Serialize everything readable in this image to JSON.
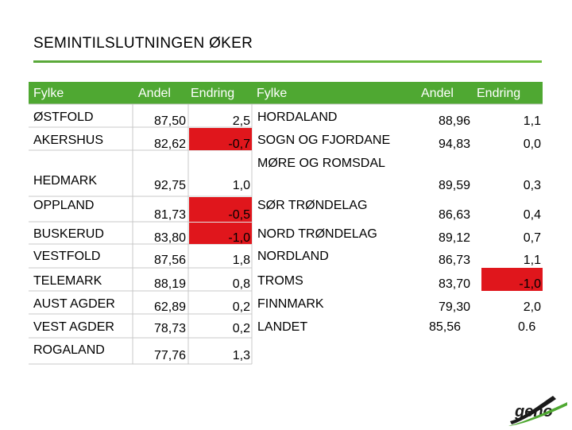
{
  "title": "SEMINTILSLUTNINGEN ØKER",
  "headers": {
    "left_fylke": "Fylke",
    "left_andel": "Andel",
    "left_endring": "Endring",
    "right_fylke": "Fylke",
    "right_andel": "Andel",
    "right_endring": "Endring"
  },
  "left_rows": [
    {
      "fylke": "ØSTFOLD",
      "andel": "87,50",
      "endring": "2,5"
    },
    {
      "fylke": "AKERSHUS",
      "andel": "82,62",
      "endring": "-0,7"
    },
    {
      "fylke": "HEDMARK",
      "andel": "92,75",
      "endring": "1,0"
    },
    {
      "fylke": "OPPLAND",
      "andel": "81,73",
      "endring": "-0,5"
    },
    {
      "fylke": "BUSKERUD",
      "andel": "83,80",
      "endring": "-1,0"
    },
    {
      "fylke": "VESTFOLD",
      "andel": "87,56",
      "endring": "1,8"
    },
    {
      "fylke": "TELEMARK",
      "andel": "88,19",
      "endring": "0,8"
    },
    {
      "fylke": "AUST AGDER",
      "andel": "62,89",
      "endring": "0,2"
    },
    {
      "fylke": "VEST AGDER",
      "andel": "78,73",
      "endring": "0,2"
    },
    {
      "fylke": "ROGALAND",
      "andel": "77,76",
      "endring": "1,3"
    }
  ],
  "right_rows": [
    {
      "fylke": "HORDALAND",
      "andel": "88,96",
      "endring": "1,1"
    },
    {
      "fylke": "SOGN OG FJORDANE",
      "andel": "94,83",
      "endring": "0,0"
    },
    {
      "fylke": "MØRE OG ROMSDAL",
      "andel": "89,59",
      "endring": "0,3"
    },
    {
      "fylke": "SØR TRØNDELAG",
      "andel": "86,63",
      "endring": "0,4"
    },
    {
      "fylke": "NORD TRØNDELAG",
      "andel": "89,12",
      "endring": "0,7"
    },
    {
      "fylke": "NORDLAND",
      "andel": "86,73",
      "endring": "1,1"
    },
    {
      "fylke": "TROMS",
      "andel": "83,70",
      "endring": "-1,0"
    },
    {
      "fylke": "FINNMARK",
      "andel": "79,30",
      "endring": "2,0"
    },
    {
      "fylke": "LANDET",
      "andel": "85,56",
      "endring": "0.6"
    }
  ],
  "logo_text": "geno",
  "colors": {
    "header_green": "#4fa832",
    "negative_red": "#e0161c",
    "rule_green": "#5aa83a",
    "logo_dark": "#1a1a1a"
  }
}
